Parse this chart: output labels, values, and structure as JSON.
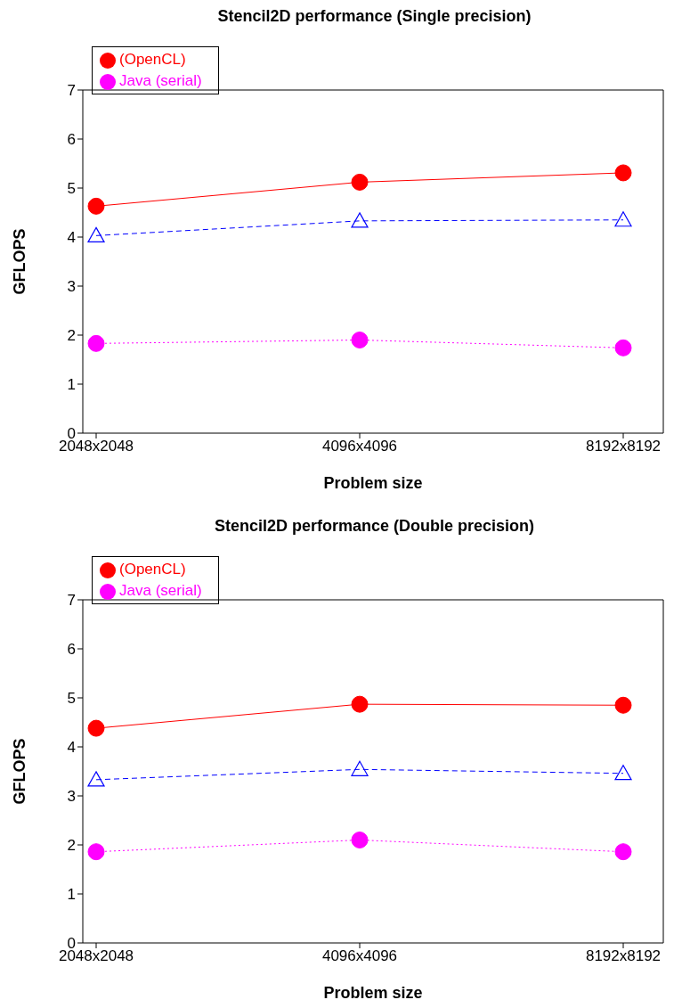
{
  "chart_data": [
    {
      "type": "line",
      "title": "Stencil2D performance (Single precision)",
      "xlabel": "Problem size",
      "ylabel": "GFLOPS",
      "categories": [
        "2048x2048",
        "4096x4096",
        "8192x8192"
      ],
      "ylim": [
        0,
        7
      ],
      "yticks": [
        0,
        1,
        2,
        3,
        4,
        5,
        6,
        7
      ],
      "grid": false,
      "legend": "top left",
      "series": [
        {
          "name": "(OpenCL)",
          "color": "#ff0000",
          "values": [
            4.63,
            5.12,
            5.31
          ],
          "marker": "circle",
          "line_style": "solid"
        },
        {
          "color": "#0000ff",
          "values": [
            4.03,
            4.33,
            4.35
          ],
          "marker": "triangle",
          "line_style": "dashed"
        },
        {
          "name": "Java (serial)",
          "color": "#ff00ff",
          "values": [
            1.83,
            1.9,
            1.74
          ],
          "marker": "circle",
          "line_style": "dotted"
        }
      ]
    },
    {
      "type": "line",
      "title": "Stencil2D performance (Double precision)",
      "xlabel": "Problem size",
      "ylabel": "GFLOPS",
      "categories": [
        "2048x2048",
        "4096x4096",
        "8192x8192"
      ],
      "ylim": [
        0,
        7
      ],
      "yticks": [
        0,
        1,
        2,
        3,
        4,
        5,
        6,
        7
      ],
      "grid": false,
      "legend": "top left",
      "series": [
        {
          "name": "(OpenCL)",
          "color": "#ff0000",
          "values": [
            4.38,
            4.87,
            4.85
          ],
          "marker": "circle",
          "line_style": "solid"
        },
        {
          "color": "#0000ff",
          "values": [
            3.33,
            3.54,
            3.46
          ],
          "marker": "triangle",
          "line_style": "dashed"
        },
        {
          "name": "Java (serial)",
          "color": "#ff00ff",
          "values": [
            1.86,
            2.1,
            1.86
          ],
          "marker": "circle",
          "line_style": "dotted"
        }
      ]
    }
  ]
}
